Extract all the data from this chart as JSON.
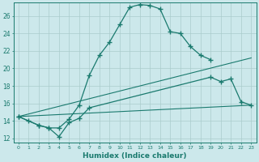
{
  "xlabel": "Humidex (Indice chaleur)",
  "bg_color": "#cce8eb",
  "grid_color": "#aacccc",
  "line_color": "#1a7a6e",
  "xlim": [
    -0.5,
    23.5
  ],
  "ylim": [
    11.5,
    27.5
  ],
  "yticks": [
    12,
    14,
    16,
    18,
    20,
    22,
    24,
    26
  ],
  "xticks": [
    0,
    1,
    2,
    3,
    4,
    5,
    6,
    7,
    8,
    9,
    10,
    11,
    12,
    13,
    14,
    15,
    16,
    17,
    18,
    19,
    20,
    21,
    22,
    23
  ],
  "curve1_x": [
    0,
    1,
    2,
    3,
    4,
    5,
    6,
    7,
    8,
    9,
    10,
    11,
    12,
    13,
    14,
    15,
    16,
    17,
    18,
    19
  ],
  "curve1_y": [
    14.5,
    14.0,
    13.5,
    13.2,
    13.2,
    14.2,
    15.8,
    19.2,
    21.5,
    23.0,
    25.0,
    27.0,
    27.3,
    27.2,
    26.8,
    24.2,
    24.0,
    22.5,
    21.5,
    21.0
  ],
  "curve2_x": [
    0,
    2,
    3,
    4,
    5,
    6,
    7,
    19,
    20,
    21,
    22,
    23
  ],
  "curve2_y": [
    14.5,
    13.5,
    13.2,
    12.2,
    13.8,
    14.3,
    15.5,
    19.0,
    18.5,
    18.8,
    16.2,
    15.8
  ],
  "line3_x": [
    0,
    23
  ],
  "line3_y": [
    14.5,
    15.8
  ],
  "line4_x": [
    0,
    23
  ],
  "line4_y": [
    14.5,
    21.2
  ]
}
